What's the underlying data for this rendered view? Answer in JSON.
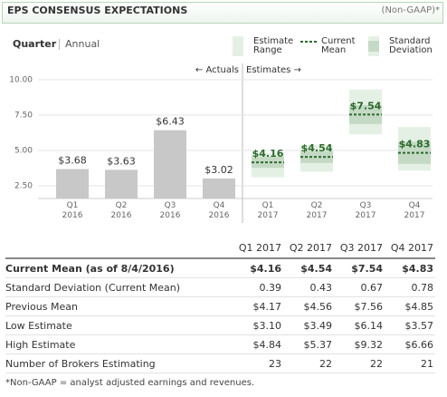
{
  "header": {
    "title": "EPS CONSENSUS EXPECTATIONS",
    "note": "(Non-GAAP)*"
  },
  "tabs": [
    "Quarter",
    "Annual"
  ],
  "chart_data": {
    "type": "bar",
    "annotations": [
      "← Actuals",
      "Estimates →"
    ],
    "categories": [
      "Q1 2016",
      "Q2 2016",
      "Q3 2016",
      "Q4 2016",
      "Q1 2017",
      "Q2 2017",
      "Q3 2017",
      "Q4 2017"
    ],
    "series": [
      {
        "color": "#c8c8c8",
        "values": [
          3.68,
          3.63,
          6.43,
          3.02,
          null,
          null,
          null,
          null
        ],
        "value_labels": [
          "$3.68",
          "$3.63",
          "$6.43",
          "$3.02",
          null,
          null,
          null,
          null
        ]
      },
      {
        "name": "Estimate Range",
        "color": "#e5f0e5",
        "low": [
          null,
          null,
          null,
          null,
          3.1,
          3.49,
          6.14,
          3.57
        ],
        "high": [
          null,
          null,
          null,
          null,
          4.84,
          5.37,
          9.32,
          6.66
        ]
      },
      {
        "name": "Current Mean",
        "color": "#2d6a2d",
        "values": [
          null,
          null,
          null,
          null,
          4.16,
          4.54,
          7.54,
          4.83
        ],
        "value_labels": [
          null,
          null,
          null,
          null,
          "$4.16",
          "$4.54",
          "$7.54",
          "$4.83"
        ]
      },
      {
        "name": "Standard Deviation",
        "color": "#c4dac4",
        "values": [
          null,
          null,
          null,
          null,
          0.39,
          0.43,
          0.67,
          0.78
        ]
      }
    ],
    "ylim": [
      1.6,
      10.6
    ],
    "yticks": [
      {
        "value": 2.5,
        "label": "2.50"
      },
      {
        "value": 5,
        "label": "5.00"
      },
      {
        "value": 7.5,
        "label": "7.50"
      },
      {
        "value": 10,
        "label": "10.00"
      }
    ],
    "grid": true
  },
  "table": {
    "columns": [
      "Q1 2017",
      "Q2 2017",
      "Q3 2017",
      "Q4 2017"
    ],
    "rows": [
      {
        "label": "Current Mean (as of 8/4/2016)",
        "cells": [
          "$4.16",
          "$4.54",
          "$7.54",
          "$4.83"
        ]
      },
      {
        "label": "Standard Deviation (Current Mean)",
        "cells": [
          "0.39",
          "0.43",
          "0.67",
          "0.78"
        ]
      },
      {
        "label": "Previous Mean",
        "cells": [
          "$4.17",
          "$4.56",
          "$7.56",
          "$4.85"
        ]
      },
      {
        "label": "Low Estimate",
        "cells": [
          "$3.10",
          "$3.49",
          "$6.14",
          "$3.57"
        ]
      },
      {
        "label": "High Estimate",
        "cells": [
          "$4.84",
          "$5.37",
          "$9.32",
          "$6.66"
        ]
      },
      {
        "label": "Number of Brokers Estimating",
        "cells": [
          23,
          22,
          22,
          21
        ]
      }
    ]
  },
  "footnote": "*Non-GAAP = analyst adjusted earnings and revenues."
}
